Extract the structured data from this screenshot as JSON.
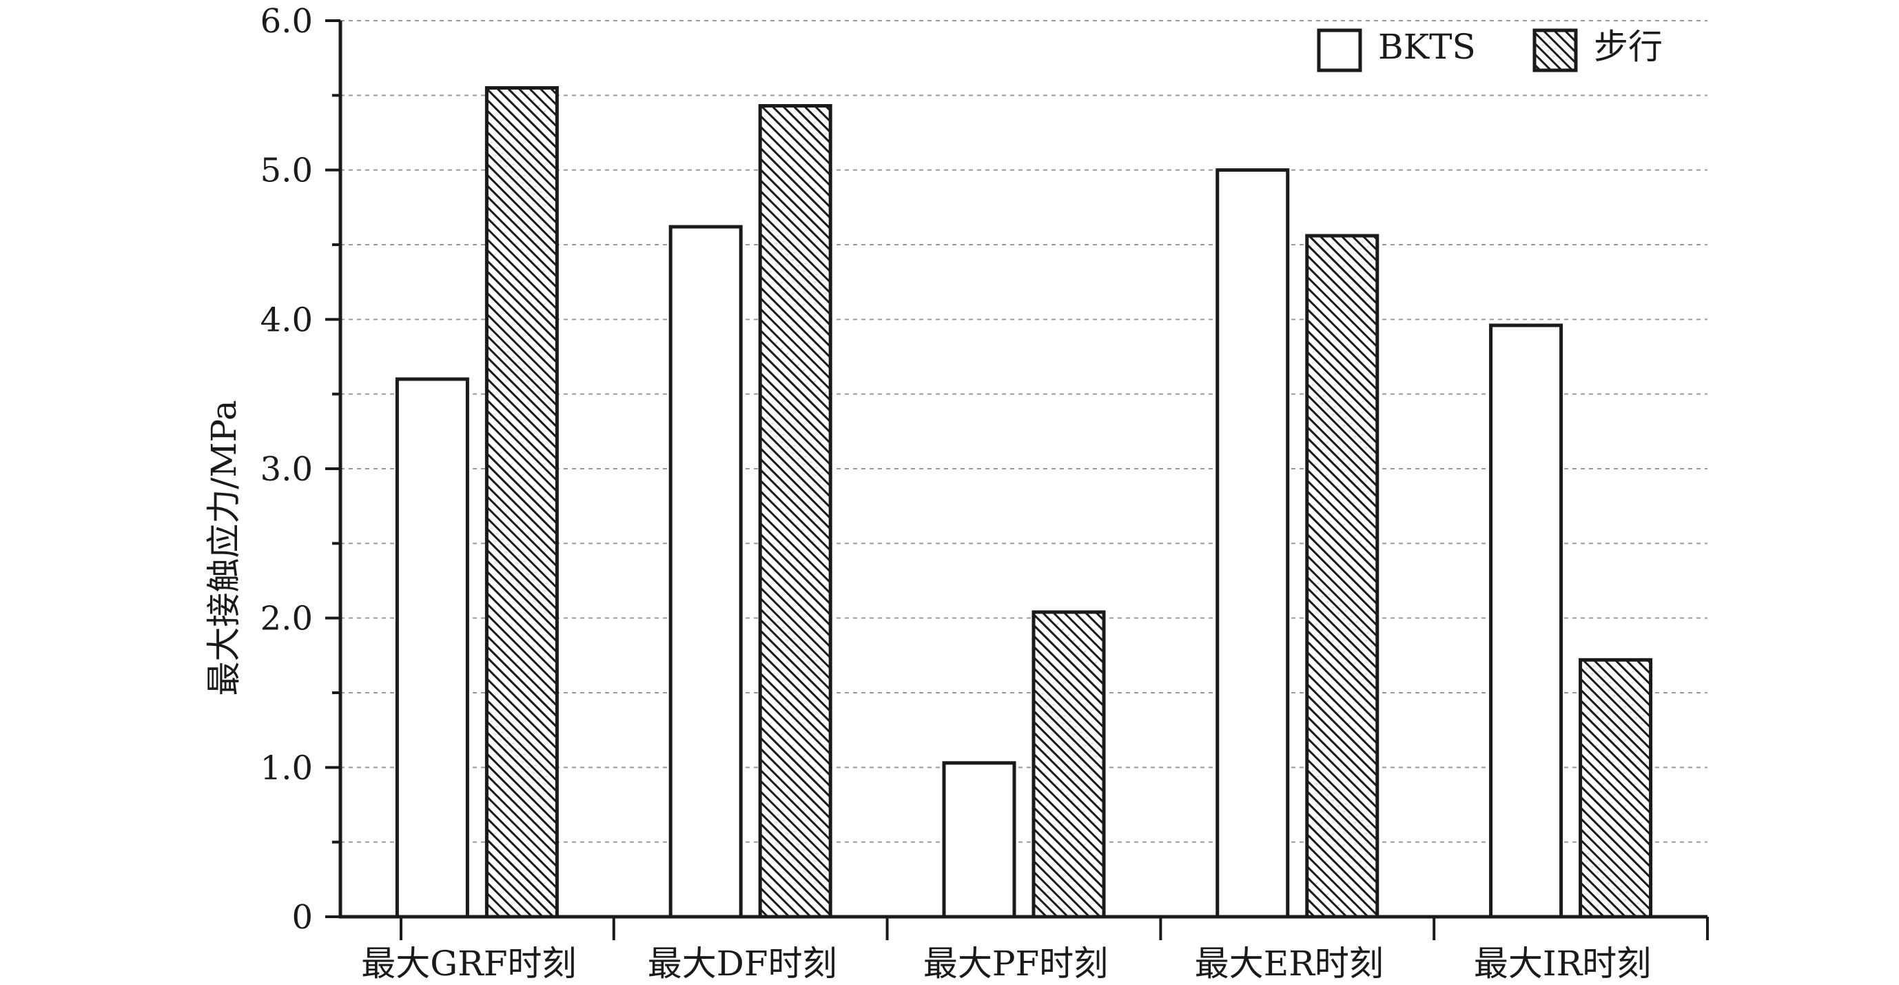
{
  "chart_data": {
    "type": "bar",
    "title": "",
    "xlabel": "",
    "ylabel": "最大接触应力/MPa",
    "ylim": [
      0,
      6.0
    ],
    "yticks": [
      "0",
      "1.0",
      "2.0",
      "3.0",
      "4.0",
      "5.0",
      "6.0"
    ],
    "grid": true,
    "legend_position": "top-right",
    "categories": [
      "最大GRF时刻",
      "最大DF时刻",
      "最大PF时刻",
      "最大ER时刻",
      "最大IR时刻"
    ],
    "series": [
      {
        "name": "BKTS",
        "values": [
          3.6,
          4.62,
          1.03,
          5.0,
          3.96
        ],
        "fill": "#ffffff",
        "pattern": "none"
      },
      {
        "name": "步行",
        "values": [
          5.55,
          5.43,
          2.04,
          4.56,
          1.72
        ],
        "fill": "#ffffff",
        "pattern": "diagonal-hatch"
      }
    ],
    "colors": {
      "axis": "#1a1a1a",
      "bar_stroke": "#1a1a1a",
      "hatch": "#1a1a1a",
      "grid": "#9a9a9a"
    }
  }
}
